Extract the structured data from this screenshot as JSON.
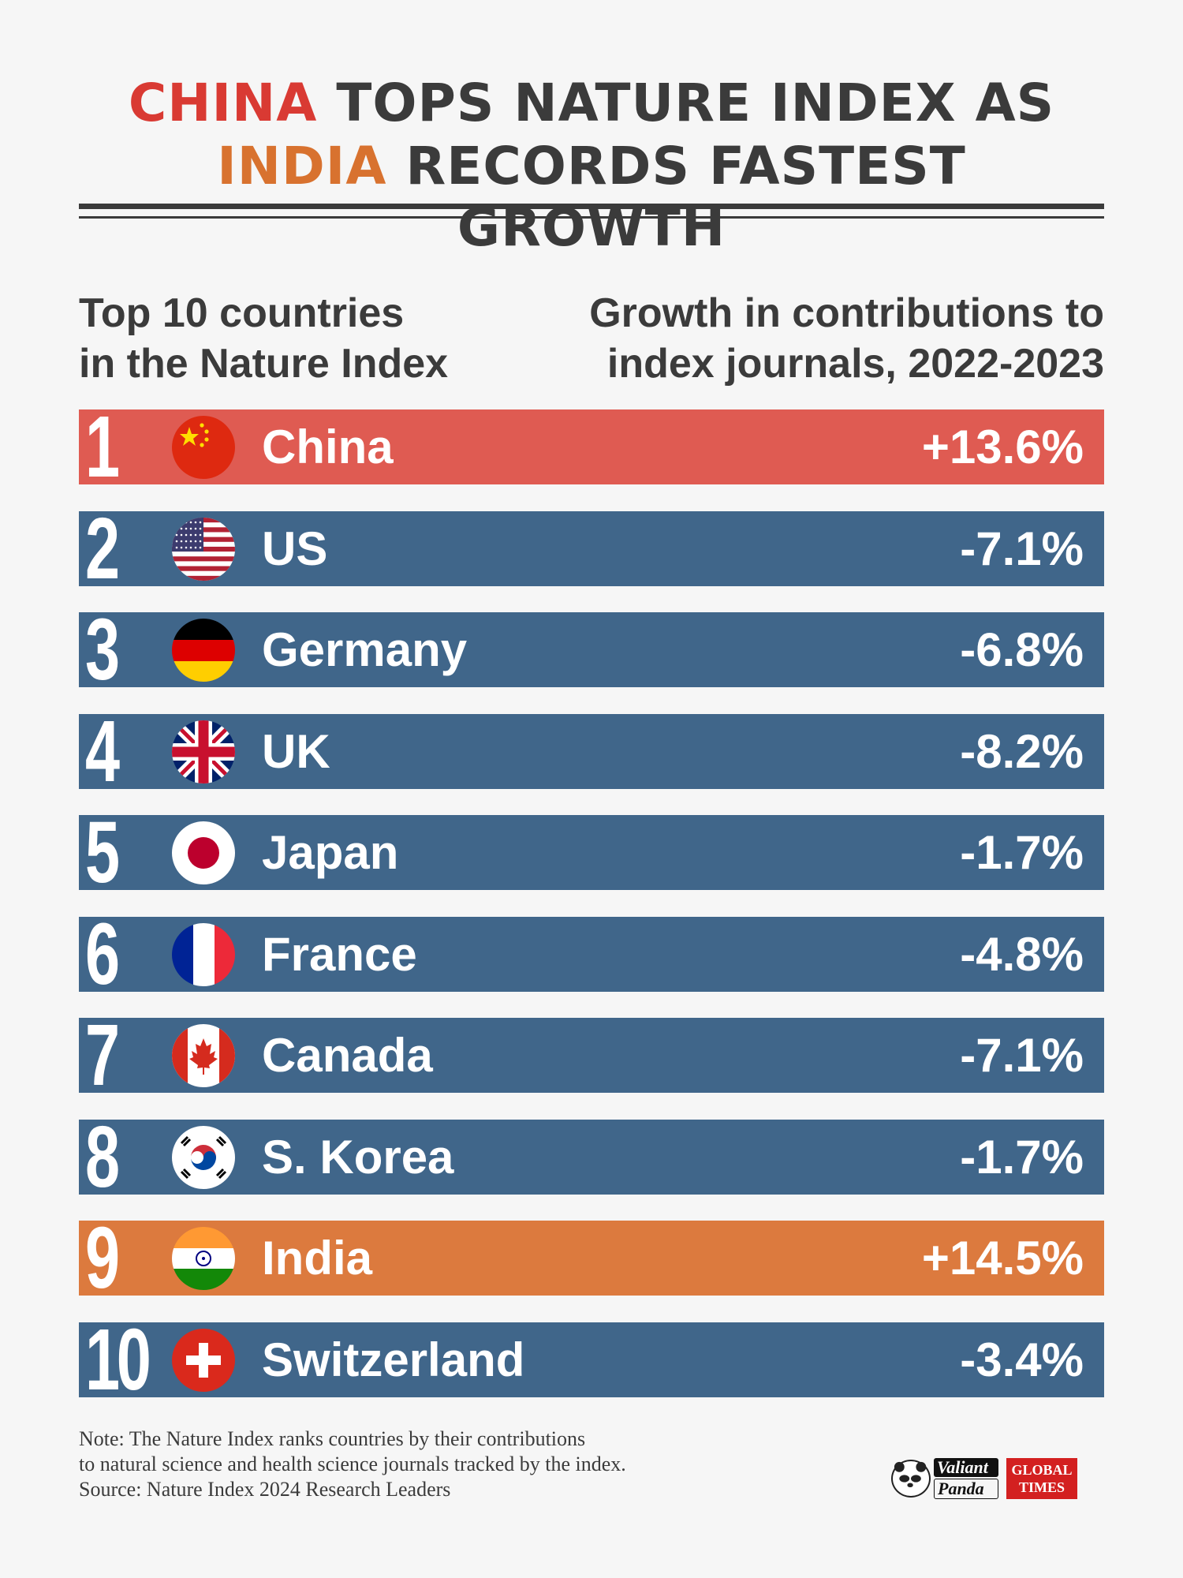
{
  "title": {
    "line1_highlight": "CHINA",
    "line1_rest": " TOPS NATURE INDEX AS",
    "line2_highlight": "INDIA",
    "line2_rest": " RECORDS FASTEST GROWTH"
  },
  "colors": {
    "china_highlight": "#d93a33",
    "india_highlight": "#d8722f",
    "china_bar": "#df5b52",
    "india_bar": "#dc7a3e",
    "default_bar": "#40668a",
    "text_dark": "#3b3b3b",
    "background": "#f6f6f6"
  },
  "subtitle_left": "Top 10 countries\nin the Nature Index",
  "subtitle_right": "Growth in contributions to\nindex journals, 2022-2023",
  "chart_data": {
    "type": "table",
    "columns": [
      "Top 10 countries in the Nature Index",
      "Growth in contributions to index journals, 2022-2023"
    ],
    "rows": [
      {
        "rank": "1",
        "country": "China",
        "growth_label": "+13.6%",
        "growth": 13.6,
        "flag_icon": "china-flag-icon",
        "highlight": "china"
      },
      {
        "rank": "2",
        "country": "US",
        "growth_label": "-7.1%",
        "growth": -7.1,
        "flag_icon": "us-flag-icon",
        "highlight": "none"
      },
      {
        "rank": "3",
        "country": "Germany",
        "growth_label": "-6.8%",
        "growth": -6.8,
        "flag_icon": "germany-flag-icon",
        "highlight": "none"
      },
      {
        "rank": "4",
        "country": "UK",
        "growth_label": "-8.2%",
        "growth": -8.2,
        "flag_icon": "uk-flag-icon",
        "highlight": "none"
      },
      {
        "rank": "5",
        "country": "Japan",
        "growth_label": "-1.7%",
        "growth": -1.7,
        "flag_icon": "japan-flag-icon",
        "highlight": "none"
      },
      {
        "rank": "6",
        "country": "France",
        "growth_label": "-4.8%",
        "growth": -4.8,
        "flag_icon": "france-flag-icon",
        "highlight": "none"
      },
      {
        "rank": "7",
        "country": "Canada",
        "growth_label": "-7.1%",
        "growth": -7.1,
        "flag_icon": "canada-flag-icon",
        "highlight": "none"
      },
      {
        "rank": "8",
        "country": "S. Korea",
        "growth_label": "-1.7%",
        "growth": -1.7,
        "flag_icon": "south-korea-flag-icon",
        "highlight": "none"
      },
      {
        "rank": "9",
        "country": "India",
        "growth_label": "+14.5%",
        "growth": 14.5,
        "flag_icon": "india-flag-icon",
        "highlight": "india"
      },
      {
        "rank": "10",
        "country": "Switzerland",
        "growth_label": "-3.4%",
        "growth": -3.4,
        "flag_icon": "switzerland-flag-icon",
        "highlight": "none"
      }
    ]
  },
  "note": {
    "line1": "Note: The Nature Index ranks countries by their contributions",
    "line2": "to natural science and health science journals tracked by the index.",
    "line3": "Source: Nature Index 2024 Research Leaders"
  },
  "logos": {
    "valiant": "Valiant",
    "panda": "Panda",
    "global": "GLOBAL",
    "times": "TIMES"
  }
}
